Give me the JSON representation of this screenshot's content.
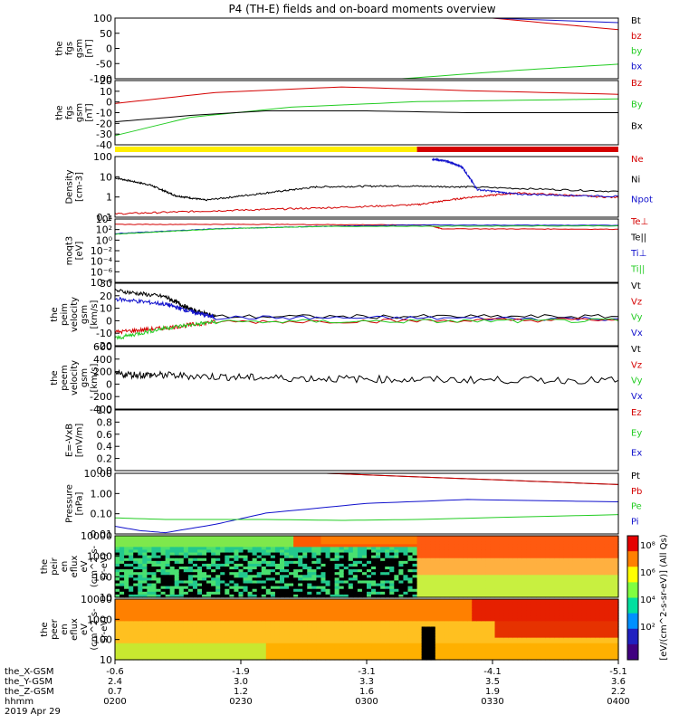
{
  "title": "P4 (TH-E) fields and on-board moments overview",
  "colors": {
    "black": "#000000",
    "red": "#d40000",
    "green": "#22cc22",
    "blue": "#1010cc",
    "yellow": "#ffee00"
  },
  "chart_data": [
    {
      "type": "line",
      "id": "p1",
      "ylabel": [
        "the",
        "fgs",
        "gsm",
        "[nT]"
      ],
      "ylim": [
        -100,
        100
      ],
      "ticks": [
        "100",
        "50",
        "0",
        "-50",
        "-100"
      ],
      "legend": [
        {
          "name": "Bt",
          "color": "black"
        },
        {
          "name": "bz",
          "color": "red"
        },
        {
          "name": "by",
          "color": "green"
        },
        {
          "name": "bx",
          "color": "blue"
        }
      ],
      "series": [
        {
          "name": "bz",
          "color": "red",
          "x": [
            0.75,
            1.0
          ],
          "y": [
            100,
            62
          ]
        },
        {
          "name": "bx",
          "color": "blue",
          "x": [
            0.75,
            1.0
          ],
          "y": [
            100,
            85
          ]
        },
        {
          "name": "by",
          "color": "green",
          "x": [
            0.57,
            0.8,
            1.0
          ],
          "y": [
            -100,
            -72,
            -52
          ]
        }
      ]
    },
    {
      "type": "line",
      "id": "p2",
      "ylabel": [
        "the",
        "fgs",
        "gsm",
        "[nT]"
      ],
      "ylim": [
        -45,
        25
      ],
      "ticks": [
        "20",
        "10",
        "0",
        "-10",
        "-20",
        "-30",
        "-40"
      ],
      "legend": [
        {
          "name": "Bz",
          "color": "red"
        },
        {
          "name": "By",
          "color": "green"
        },
        {
          "name": "Bx",
          "color": "black"
        }
      ],
      "series": [
        {
          "name": "Bz",
          "color": "red",
          "x": [
            0,
            0.2,
            0.45,
            0.7,
            1.0
          ],
          "y": [
            0,
            12,
            18,
            14,
            10
          ]
        },
        {
          "name": "By",
          "color": "green",
          "x": [
            0,
            0.15,
            0.35,
            0.6,
            1.0
          ],
          "y": [
            -35,
            -15,
            -4,
            2,
            5
          ]
        },
        {
          "name": "Bx",
          "color": "black",
          "x": [
            0,
            0.15,
            0.3,
            0.5,
            0.7,
            1.0
          ],
          "y": [
            -20,
            -13,
            -8,
            -8,
            -10,
            -10
          ]
        }
      ]
    },
    {
      "type": "line",
      "id": "p3",
      "ylabel": [
        "Density",
        "[cm-3]"
      ],
      "yscale": "log",
      "ylim": [
        0.03,
        300
      ],
      "ticks": [
        "100",
        "10",
        "1",
        "0.1"
      ],
      "legend": [
        {
          "name": "Ne",
          "color": "red"
        },
        {
          "name": "Ni",
          "color": "black"
        },
        {
          "name": "Npot",
          "color": "blue"
        }
      ],
      "series": [
        {
          "name": "Ni",
          "color": "black",
          "x": [
            0,
            0.07,
            0.12,
            0.18,
            0.3,
            0.4,
            0.55,
            0.7,
            1.0
          ],
          "y": [
            12,
            4,
            0.8,
            0.4,
            1.2,
            3,
            3.5,
            3,
            1.5
          ]
        },
        {
          "name": "Ne",
          "color": "red",
          "x": [
            0,
            0.2,
            0.4,
            0.6,
            0.7,
            0.8,
            1.0
          ],
          "y": [
            0.05,
            0.08,
            0.12,
            0.2,
            0.6,
            1.2,
            0.6
          ]
        },
        {
          "name": "Npot",
          "color": "blue",
          "x": [
            0.63,
            0.66,
            0.69,
            0.72,
            0.8,
            1.0
          ],
          "y": [
            200,
            150,
            60,
            2,
            1,
            0.7
          ]
        }
      ]
    },
    {
      "type": "line",
      "id": "p4",
      "ylabel": [
        "moqt3",
        "[eV]"
      ],
      "yscale": "log",
      "ylim": [
        1e-08,
        100000.0
      ],
      "ticks": [
        "10⁴",
        "10²",
        "10⁰",
        "10⁻²",
        "10⁻⁴",
        "10⁻⁶",
        "10⁻⁸"
      ],
      "legend": [
        {
          "name": "Te⊥",
          "color": "red"
        },
        {
          "name": "Te||",
          "color": "black"
        },
        {
          "name": "Ti⊥",
          "color": "blue"
        },
        {
          "name": "Ti||",
          "color": "green"
        }
      ],
      "series": [
        {
          "name": "Te",
          "color": "red",
          "x": [
            0,
            0.3,
            0.62,
            0.65,
            1.0
          ],
          "y": [
            8000,
            8000,
            6000,
            1000,
            800
          ]
        },
        {
          "name": "Ti",
          "color": "blue",
          "x": [
            0,
            0.2,
            0.4,
            0.6,
            1.0
          ],
          "y": [
            100,
            1000,
            3000,
            6000,
            5000
          ]
        },
        {
          "name": "Ti||",
          "color": "green",
          "x": [
            0,
            0.2,
            0.4,
            1.0
          ],
          "y": [
            80,
            900,
            3000,
            4000
          ]
        }
      ]
    },
    {
      "type": "line",
      "id": "p5",
      "ylabel": [
        "the",
        "peim",
        "velocity",
        "gsm",
        "[km/s]"
      ],
      "ylim": [
        -25,
        35
      ],
      "ticks": [
        "30",
        "20",
        "10",
        "0",
        "-10",
        "-20"
      ],
      "legend": [
        {
          "name": "Vt",
          "color": "black"
        },
        {
          "name": "Vz",
          "color": "red"
        },
        {
          "name": "Vy",
          "color": "green"
        },
        {
          "name": "Vx",
          "color": "blue"
        }
      ],
      "series": [
        {
          "name": "Vt",
          "color": "black",
          "x": [
            0,
            0.1,
            0.15,
            0.2,
            1.0
          ],
          "y": [
            28,
            22,
            10,
            3,
            3
          ]
        },
        {
          "name": "Vx",
          "color": "blue",
          "x": [
            0,
            0.1,
            0.15,
            0.2,
            1.0
          ],
          "y": [
            20,
            15,
            8,
            2,
            1
          ]
        },
        {
          "name": "Vz",
          "color": "red",
          "x": [
            0,
            0.1,
            0.2,
            1.0
          ],
          "y": [
            -12,
            -8,
            -2,
            0
          ]
        },
        {
          "name": "Vy",
          "color": "green",
          "x": [
            0,
            0.1,
            0.2,
            1.0
          ],
          "y": [
            -18,
            -8,
            -2,
            -1
          ]
        }
      ]
    },
    {
      "type": "line",
      "id": "p6",
      "ylabel": [
        "the",
        "peem",
        "velocity",
        "gsm",
        "[km/s]"
      ],
      "ylim": [
        -400,
        600
      ],
      "ticks": [
        "600",
        "400",
        "200",
        "0",
        "-200",
        "-400"
      ],
      "legend": [
        {
          "name": "Vt",
          "color": "black"
        },
        {
          "name": "Vz",
          "color": "red"
        },
        {
          "name": "Vy",
          "color": "green"
        },
        {
          "name": "Vx",
          "color": "blue"
        }
      ],
      "series": [
        {
          "name": "Vt",
          "color": "black",
          "x": [
            0,
            0.1,
            0.3,
            0.6,
            1.0
          ],
          "y": [
            160,
            140,
            100,
            70,
            60
          ]
        }
      ]
    },
    {
      "type": "line",
      "id": "p7",
      "ylabel": [
        "E=-VxB",
        "[mV/m]"
      ],
      "ylim": [
        0,
        1
      ],
      "ticks": [
        "1.0",
        "0.8",
        "0.6",
        "0.4",
        "0.2",
        "0.0"
      ],
      "legend": [
        {
          "name": "Ez",
          "color": "red"
        },
        {
          "name": "Ey",
          "color": "green"
        },
        {
          "name": "Ex",
          "color": "blue"
        }
      ],
      "series": []
    },
    {
      "type": "line",
      "id": "p8",
      "ylabel": [
        "Pressure",
        "[nPa]"
      ],
      "yscale": "log",
      "ylim": [
        0.005,
        30
      ],
      "ticks": [
        "10.00",
        "1.00",
        "0.10",
        "0.01"
      ],
      "legend": [
        {
          "name": "Pt",
          "color": "black"
        },
        {
          "name": "Pb",
          "color": "red"
        },
        {
          "name": "Pe",
          "color": "green"
        },
        {
          "name": "Pi",
          "color": "blue"
        }
      ],
      "series": [
        {
          "name": "Pt",
          "color": "black",
          "x": [
            0.42,
            1.0
          ],
          "y": [
            30,
            6
          ]
        },
        {
          "name": "Pb",
          "color": "red",
          "x": [
            0.42,
            1.0
          ],
          "y": [
            30,
            6
          ]
        },
        {
          "name": "Pi",
          "color": "blue",
          "x": [
            0,
            0.05,
            0.1,
            0.2,
            0.3,
            0.5,
            0.7,
            1.0
          ],
          "y": [
            0.015,
            0.008,
            0.006,
            0.02,
            0.1,
            0.4,
            0.7,
            0.5
          ]
        },
        {
          "name": "Pe",
          "color": "green",
          "x": [
            0,
            0.1,
            0.3,
            0.45,
            0.6,
            1.0
          ],
          "y": [
            0.05,
            0.04,
            0.04,
            0.035,
            0.04,
            0.08
          ]
        }
      ]
    },
    {
      "type": "heatmap",
      "id": "p9",
      "ylabel": [
        "the",
        "peir",
        "en",
        "eflux",
        "eV",
        "(cm^2-s-",
        "sr-eV)"
      ],
      "yscale": "log",
      "ylim": [
        5,
        30000
      ],
      "ticks": [
        "10000",
        "1000",
        "100",
        "10"
      ]
    },
    {
      "type": "heatmap",
      "id": "p10",
      "ylabel": [
        "the",
        "peer",
        "en",
        "eflux",
        "eV",
        "(cm^2-s-",
        "sr-eV)"
      ],
      "yscale": "log",
      "ylim": [
        5,
        30000
      ],
      "ticks": [
        "10000",
        "1000",
        "100",
        "10"
      ]
    }
  ],
  "colorbar": {
    "ticks": [
      "10⁸",
      "10⁶",
      "10⁴",
      "10²"
    ],
    "label": "[eV/(cm^2-s-sr-eV)] (All Qs)"
  },
  "xaxis": {
    "rows": [
      {
        "label": "the_X-GSM",
        "values": [
          "-0.6",
          "-1.9",
          "-3.1",
          "-4.1",
          "-5.1"
        ]
      },
      {
        "label": "the_Y-GSM",
        "values": [
          "2.4",
          "3.0",
          "3.3",
          "3.5",
          "3.6"
        ]
      },
      {
        "label": "the_Z-GSM",
        "values": [
          "0.7",
          "1.2",
          "1.6",
          "1.9",
          "2.2"
        ]
      },
      {
        "label": "hhmm",
        "values": [
          "0200",
          "0230",
          "0300",
          "0330",
          "0400"
        ]
      }
    ],
    "date": "2019 Apr 29"
  }
}
